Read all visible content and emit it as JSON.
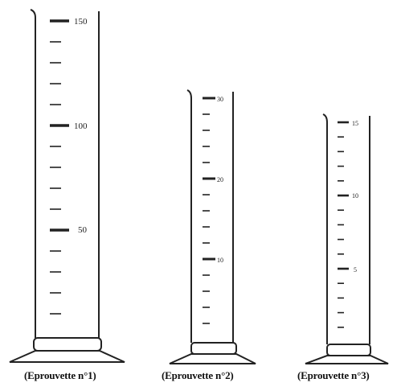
{
  "cylinders": [
    {
      "caption": "(Eprouvette n°1)",
      "labels": [
        "150",
        "100",
        "50"
      ]
    },
    {
      "caption": "(Eprouvette n°2)",
      "labels": [
        "30",
        "20",
        "10"
      ]
    },
    {
      "caption": "(Eprouvette n°3)",
      "labels": [
        "15",
        "10",
        "5"
      ]
    }
  ]
}
